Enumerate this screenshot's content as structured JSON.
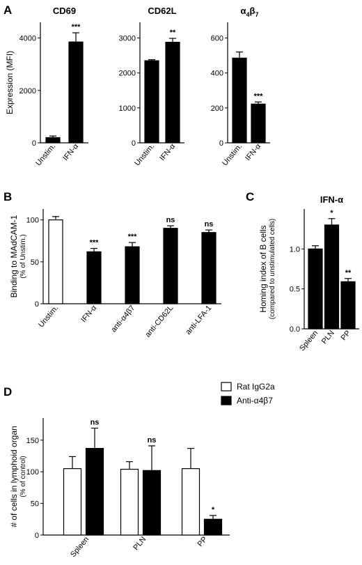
{
  "panel_letters": [
    "A",
    "B",
    "C",
    "D"
  ],
  "chart_data": [
    {
      "type": "bar",
      "panel": "A",
      "title": "CD69",
      "ylabel": "Expression (MFI)",
      "categories": [
        "Unstim.",
        "IFN-α"
      ],
      "values": [
        200,
        3850
      ],
      "errors": [
        60,
        350
      ],
      "fills": [
        "#000000",
        "#000000"
      ],
      "significance": [
        "",
        "***"
      ],
      "ylim": [
        0,
        4600
      ],
      "yticks": [
        0,
        2000,
        4000
      ]
    },
    {
      "type": "bar",
      "panel": "A",
      "title": "CD62L",
      "ylabel": "",
      "categories": [
        "Unstim.",
        "IFN-α"
      ],
      "values": [
        2350,
        2880
      ],
      "errors": [
        30,
        110
      ],
      "fills": [
        "#000000",
        "#000000"
      ],
      "significance": [
        "",
        "**"
      ],
      "ylim": [
        0,
        3450
      ],
      "yticks": [
        0,
        1000,
        2000,
        3000
      ]
    },
    {
      "type": "bar",
      "panel": "A",
      "title_main": "α",
      "title_sub1": "4",
      "title_mid": "β",
      "title_sub2": "7",
      "ylabel": "",
      "categories": [
        "Unstim.",
        "IFN-α"
      ],
      "values": [
        485,
        222
      ],
      "errors": [
        35,
        12
      ],
      "fills": [
        "#000000",
        "#000000"
      ],
      "significance": [
        "",
        "***"
      ],
      "ylim": [
        0,
        690
      ],
      "yticks": [
        0,
        200,
        400,
        600
      ]
    },
    {
      "type": "bar",
      "panel": "B",
      "title": "",
      "ylabel": "Binding to MAdCAM-1",
      "ylabel_sub": "(% of Unstim.)",
      "categories": [
        "Unstim.",
        "IFN-α",
        "anti-α4β7",
        "anti-CD62L",
        "anti-LFA-1"
      ],
      "values": [
        100,
        62,
        68,
        90,
        85
      ],
      "errors": [
        4,
        4,
        5,
        3,
        3
      ],
      "fills": [
        "#ffffff",
        "#000000",
        "#000000",
        "#000000",
        "#000000"
      ],
      "significance": [
        "",
        "***",
        "***",
        "ns",
        "ns"
      ],
      "ylim": [
        0,
        113
      ],
      "yticks": [
        0,
        50,
        100
      ]
    },
    {
      "type": "bar",
      "panel": "C",
      "title": "IFN-α",
      "ylabel": "Homing index of B cells",
      "ylabel_sub": "(compared to unstimulated cells)",
      "categories": [
        "Spleen",
        "PLN",
        "PP"
      ],
      "values": [
        1.0,
        1.3,
        0.59
      ],
      "errors": [
        0.04,
        0.08,
        0.04
      ],
      "fills": [
        "#000000",
        "#000000",
        "#000000"
      ],
      "significance": [
        "",
        "*",
        "**"
      ],
      "ylim": [
        0,
        1.5
      ],
      "yticks": [
        0.0,
        0.5,
        1.0
      ],
      "ytick_labels": [
        "0.0",
        "0.5",
        "1.0"
      ]
    },
    {
      "type": "bar",
      "panel": "D",
      "title": "",
      "ylabel": "# of cells in lymphoid organ",
      "ylabel_sub": "(% of control)",
      "categories": [
        "Spleen",
        "PLN",
        "PP"
      ],
      "series": [
        {
          "name": "Rat IgG2a",
          "fill": "#ffffff",
          "values": [
            105,
            104,
            105
          ],
          "errors": [
            19,
            12,
            32
          ],
          "significance": [
            "",
            "",
            ""
          ]
        },
        {
          "name": "Anti-α4β7",
          "fill": "#000000",
          "values": [
            137,
            102,
            25
          ],
          "errors": [
            32,
            39,
            6
          ],
          "significance": [
            "ns",
            "ns",
            "*"
          ]
        }
      ],
      "ylim": [
        0,
        185
      ],
      "yticks": [
        0,
        50,
        100,
        150
      ],
      "legend_position": "top-right"
    }
  ]
}
